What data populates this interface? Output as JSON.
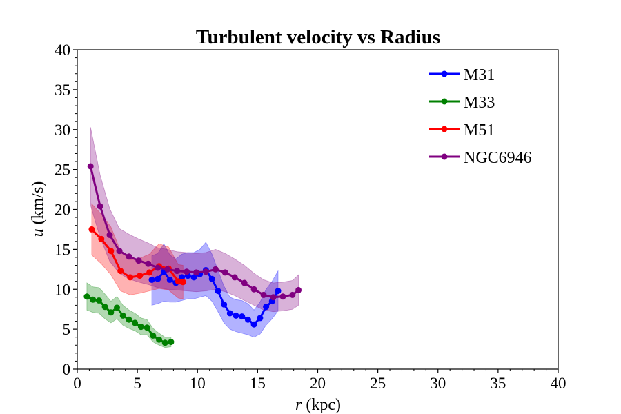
{
  "chart_data": {
    "type": "line",
    "title": "Turbulent velocity vs Radius",
    "xlabel_var": "r",
    "xlabel_unit": " (kpc)",
    "ylabel_var": "u",
    "ylabel_unit": " (km/s)",
    "xlim": [
      0,
      40
    ],
    "ylim": [
      0,
      40
    ],
    "xticks": [
      0,
      5,
      10,
      15,
      20,
      25,
      30,
      35,
      40
    ],
    "yticks": [
      0,
      5,
      10,
      15,
      20,
      25,
      30,
      35,
      40
    ],
    "grid": false,
    "legend_position": "top-right",
    "series": [
      {
        "name": "M31",
        "color": "#0000ff",
        "x": [
          6.2,
          6.7,
          7.2,
          7.7,
          8.2,
          8.7,
          9.2,
          9.7,
          10.2,
          10.7,
          11.2,
          11.7,
          12.2,
          12.7,
          13.2,
          13.7,
          14.2,
          14.7,
          15.2,
          15.7,
          16.2,
          16.7
        ],
        "y": [
          11.2,
          11.3,
          12.2,
          11.2,
          10.8,
          11.5,
          11.7,
          11.5,
          11.9,
          12.4,
          11.3,
          9.8,
          8.1,
          7.0,
          6.7,
          6.6,
          6.2,
          5.6,
          6.4,
          7.8,
          8.5,
          9.8
        ],
        "lower": [
          8.0,
          8.2,
          8.5,
          8.4,
          8.4,
          8.6,
          8.8,
          8.8,
          9.0,
          9.2,
          8.5,
          7.2,
          5.8,
          5.0,
          4.7,
          4.5,
          4.3,
          4.0,
          4.4,
          5.5,
          6.3,
          7.3
        ],
        "upper": [
          14.2,
          14.5,
          15.7,
          14.3,
          13.8,
          14.4,
          14.6,
          14.6,
          15.0,
          15.9,
          14.4,
          12.4,
          10.4,
          9.0,
          8.7,
          8.6,
          8.2,
          7.4,
          8.4,
          10.0,
          11.0,
          12.3
        ]
      },
      {
        "name": "M33",
        "color": "#008000",
        "x": [
          0.8,
          1.3,
          1.8,
          2.3,
          2.8,
          3.3,
          3.8,
          4.3,
          4.8,
          5.3,
          5.8,
          6.3,
          6.8,
          7.3,
          7.8
        ],
        "y": [
          9.1,
          8.7,
          8.6,
          7.8,
          7.1,
          7.7,
          6.7,
          6.2,
          5.8,
          5.3,
          5.2,
          4.2,
          3.7,
          3.3,
          3.4
        ],
        "lower": [
          7.4,
          7.1,
          7.0,
          6.3,
          5.8,
          6.3,
          5.5,
          5.1,
          4.8,
          4.3,
          4.3,
          3.4,
          3.0,
          2.7,
          2.8
        ],
        "upper": [
          10.8,
          10.3,
          10.2,
          9.4,
          8.5,
          9.1,
          8.0,
          7.4,
          7.0,
          6.4,
          6.2,
          5.1,
          4.5,
          4.0,
          4.0
        ]
      },
      {
        "name": "M51",
        "color": "#ff0000",
        "x": [
          1.2,
          2.0,
          2.8,
          3.6,
          4.4,
          5.2,
          6.0,
          6.8,
          7.6,
          8.4,
          8.8
        ],
        "y": [
          17.5,
          16.3,
          14.8,
          12.3,
          11.5,
          11.7,
          12.1,
          12.9,
          12.6,
          11.0,
          10.9
        ],
        "lower": [
          14.3,
          13.2,
          11.8,
          9.8,
          9.3,
          9.5,
          9.8,
          10.1,
          9.9,
          8.9,
          8.8
        ],
        "upper": [
          20.7,
          19.4,
          17.8,
          14.8,
          13.7,
          13.9,
          14.4,
          15.7,
          15.3,
          13.1,
          13.0
        ]
      },
      {
        "name": "NGC6946",
        "color": "#800080",
        "x": [
          1.1,
          1.9,
          2.7,
          3.5,
          4.3,
          5.1,
          5.9,
          6.7,
          7.5,
          8.3,
          9.1,
          9.9,
          10.7,
          11.5,
          12.3,
          13.1,
          13.9,
          14.7,
          15.5,
          16.3,
          17.1,
          17.9,
          18.4
        ],
        "y": [
          25.4,
          20.4,
          16.8,
          14.8,
          14.1,
          13.6,
          13.2,
          12.7,
          12.5,
          12.3,
          12.2,
          12.1,
          12.2,
          12.5,
          12.1,
          11.5,
          10.8,
          10.0,
          9.3,
          9.0,
          9.1,
          9.3,
          9.9
        ],
        "lower": [
          20.5,
          16.5,
          13.5,
          12.0,
          11.3,
          10.9,
          10.6,
          10.2,
          10.0,
          9.9,
          9.8,
          9.7,
          9.8,
          10.0,
          9.7,
          9.2,
          8.6,
          8.0,
          7.4,
          7.2,
          7.3,
          7.5,
          8.0
        ],
        "upper": [
          30.3,
          24.3,
          20.1,
          17.6,
          16.9,
          16.3,
          15.8,
          15.2,
          15.0,
          14.7,
          14.6,
          14.5,
          14.6,
          15.0,
          14.5,
          13.8,
          13.0,
          12.0,
          11.2,
          10.8,
          10.9,
          11.1,
          11.8
        ]
      }
    ]
  }
}
